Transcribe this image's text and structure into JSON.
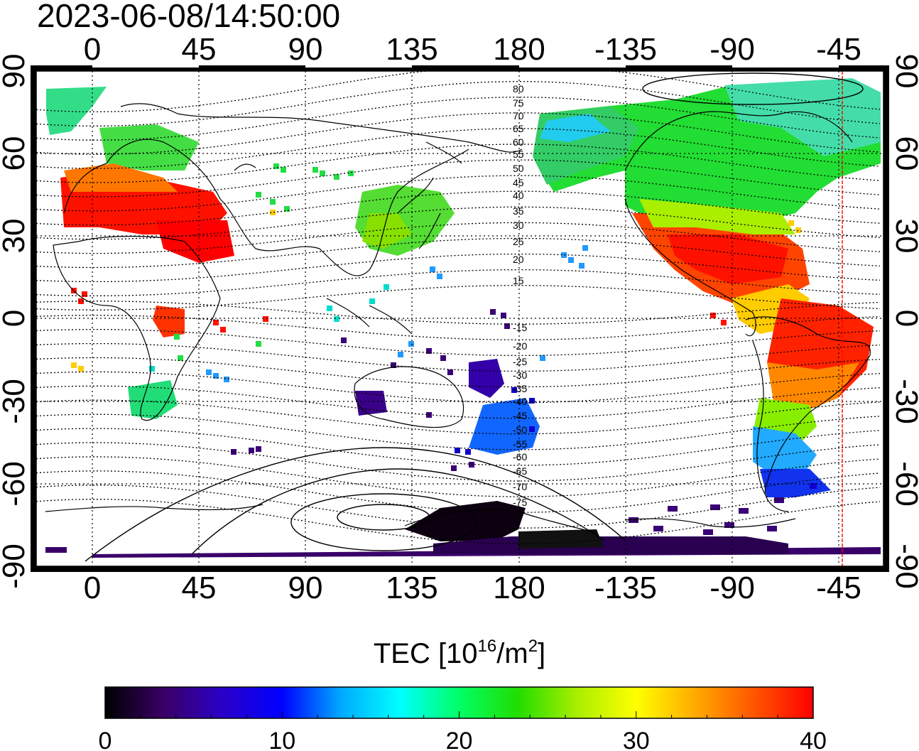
{
  "timestamp": "2023-06-08/14:50:00",
  "map": {
    "lon_ticks": [
      "0",
      "45",
      "90",
      "135",
      "180",
      "-135",
      "-90",
      "-45"
    ],
    "lat_ticks": [
      "90",
      "60",
      "30",
      "0",
      "-30",
      "-60",
      "-90"
    ],
    "contour_labels_north": [
      "80",
      "75",
      "70",
      "65",
      "60",
      "55",
      "50",
      "45",
      "40",
      "35",
      "30",
      "25",
      "20",
      "15"
    ],
    "contour_labels_south": [
      "-15",
      "-20",
      "-25",
      "-30",
      "-35",
      "-40",
      "-45",
      "-50",
      "-55",
      "-60",
      "-65",
      "-70",
      "-75"
    ],
    "terminator_color": "#ff0000"
  },
  "colorbar": {
    "title_main": "TEC  [10",
    "title_exp1": "16",
    "title_mid": "/m",
    "title_exp2": "2",
    "title_end": "]",
    "tick_labels": [
      "0",
      "10",
      "20",
      "30",
      "40"
    ],
    "min": 0,
    "max": 40,
    "colors": [
      "#000000",
      "#3a0066",
      "#2a00c8",
      "#0000ff",
      "#00aaff",
      "#00ffff",
      "#00ff66",
      "#22dd00",
      "#aaee00",
      "#ffff00",
      "#ffaa00",
      "#ff5500",
      "#ff0000"
    ]
  }
}
